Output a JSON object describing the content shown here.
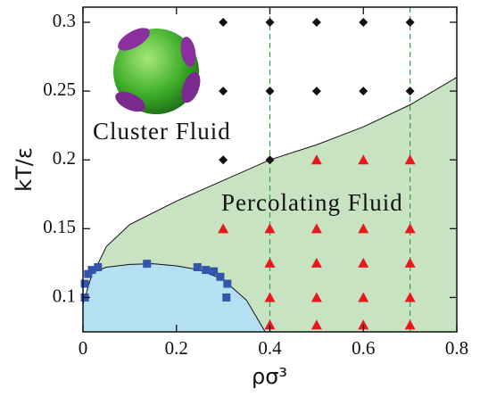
{
  "chart_data": {
    "type": "scatter",
    "xlabel": "ρσ³",
    "ylabel": "kT/ε",
    "xlim": [
      0,
      0.8
    ],
    "ylim": [
      0.075,
      0.311
    ],
    "xticks": [
      0,
      0.2,
      0.4,
      0.6,
      0.8
    ],
    "yticks": [
      0.1,
      0.15,
      0.2,
      0.25,
      0.3
    ],
    "annotations": [
      "Cluster Fluid",
      "Percolating Fluid"
    ],
    "regions": [
      {
        "color": "#c8e3c2",
        "x": [
          0.03,
          0.05,
          0.1,
          0.2,
          0.3,
          0.4,
          0.5,
          0.6,
          0.7,
          0.8
        ],
        "values": [
          0.123,
          0.137,
          0.153,
          0.17,
          0.185,
          0.2,
          0.211,
          0.224,
          0.24,
          0.26
        ]
      },
      {
        "color": "#b4e0f2",
        "x": [
          0,
          0.02,
          0.05,
          0.1,
          0.15,
          0.2,
          0.25,
          0.3,
          0.35,
          0.39
        ],
        "values": [
          0.095,
          0.118,
          0.122,
          0.124,
          0.1245,
          0.123,
          0.12,
          0.113,
          0.098,
          0.075
        ]
      }
    ],
    "dashed_x": [
      0.4,
      0.7
    ],
    "dashed_color": "#3c9a4a",
    "series": [
      {
        "marker": "square",
        "color": "#3355aa",
        "x": [
          0.004,
          0.004,
          0.011,
          0.019,
          0.032,
          0.137,
          0.245,
          0.263,
          0.28,
          0.294,
          0.309,
          0.307
        ],
        "values": [
          0.1,
          0.11,
          0.117,
          0.12,
          0.122,
          0.1245,
          0.122,
          0.12,
          0.119,
          0.115,
          0.11,
          0.1
        ]
      },
      {
        "marker": "diamond",
        "color": "#111111",
        "x": [
          0.3,
          0.4,
          0.5,
          0.6,
          0.7,
          0.3,
          0.4,
          0.5,
          0.6,
          0.7,
          0.3,
          0.4
        ],
        "values": [
          0.3,
          0.3,
          0.3,
          0.3,
          0.3,
          0.25,
          0.25,
          0.25,
          0.25,
          0.25,
          0.2,
          0.2
        ]
      },
      {
        "marker": "triangle",
        "color": "#e8191c",
        "x": [
          0.5,
          0.6,
          0.7,
          0.3,
          0.4,
          0.5,
          0.6,
          0.7,
          0.4,
          0.5,
          0.6,
          0.7,
          0.4,
          0.5,
          0.6,
          0.7,
          0.4,
          0.5,
          0.6,
          0.7
        ],
        "values": [
          0.2,
          0.2,
          0.2,
          0.15,
          0.15,
          0.15,
          0.15,
          0.15,
          0.125,
          0.125,
          0.125,
          0.125,
          0.1,
          0.1,
          0.1,
          0.1,
          0.08,
          0.08,
          0.08,
          0.08
        ]
      }
    ]
  }
}
